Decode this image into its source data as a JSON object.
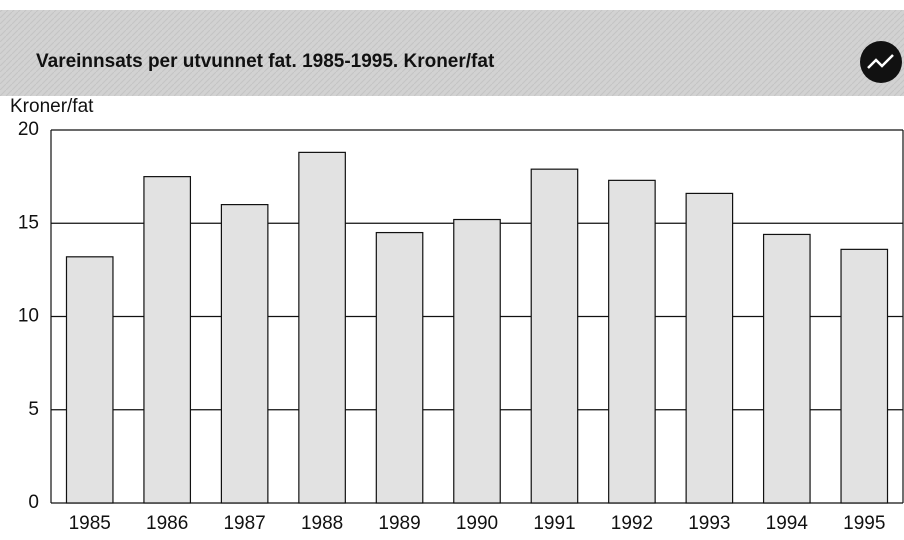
{
  "chart_data": {
    "type": "bar",
    "title": "Vareinnsats per utvunnet fat. 1985-1995. Kroner/fat",
    "y_label": "Kroner/fat",
    "categories": [
      "1985",
      "1986",
      "1987",
      "1988",
      "1989",
      "1990",
      "1991",
      "1992",
      "1993",
      "1994",
      "1995"
    ],
    "values": [
      13.2,
      17.5,
      16.0,
      18.8,
      14.5,
      15.2,
      17.9,
      17.3,
      16.6,
      14.4,
      13.6
    ],
    "color": "#e2e2e2",
    "ylim": [
      0,
      20
    ],
    "yticks": [
      0,
      5,
      10,
      15,
      20
    ],
    "grid": true
  }
}
